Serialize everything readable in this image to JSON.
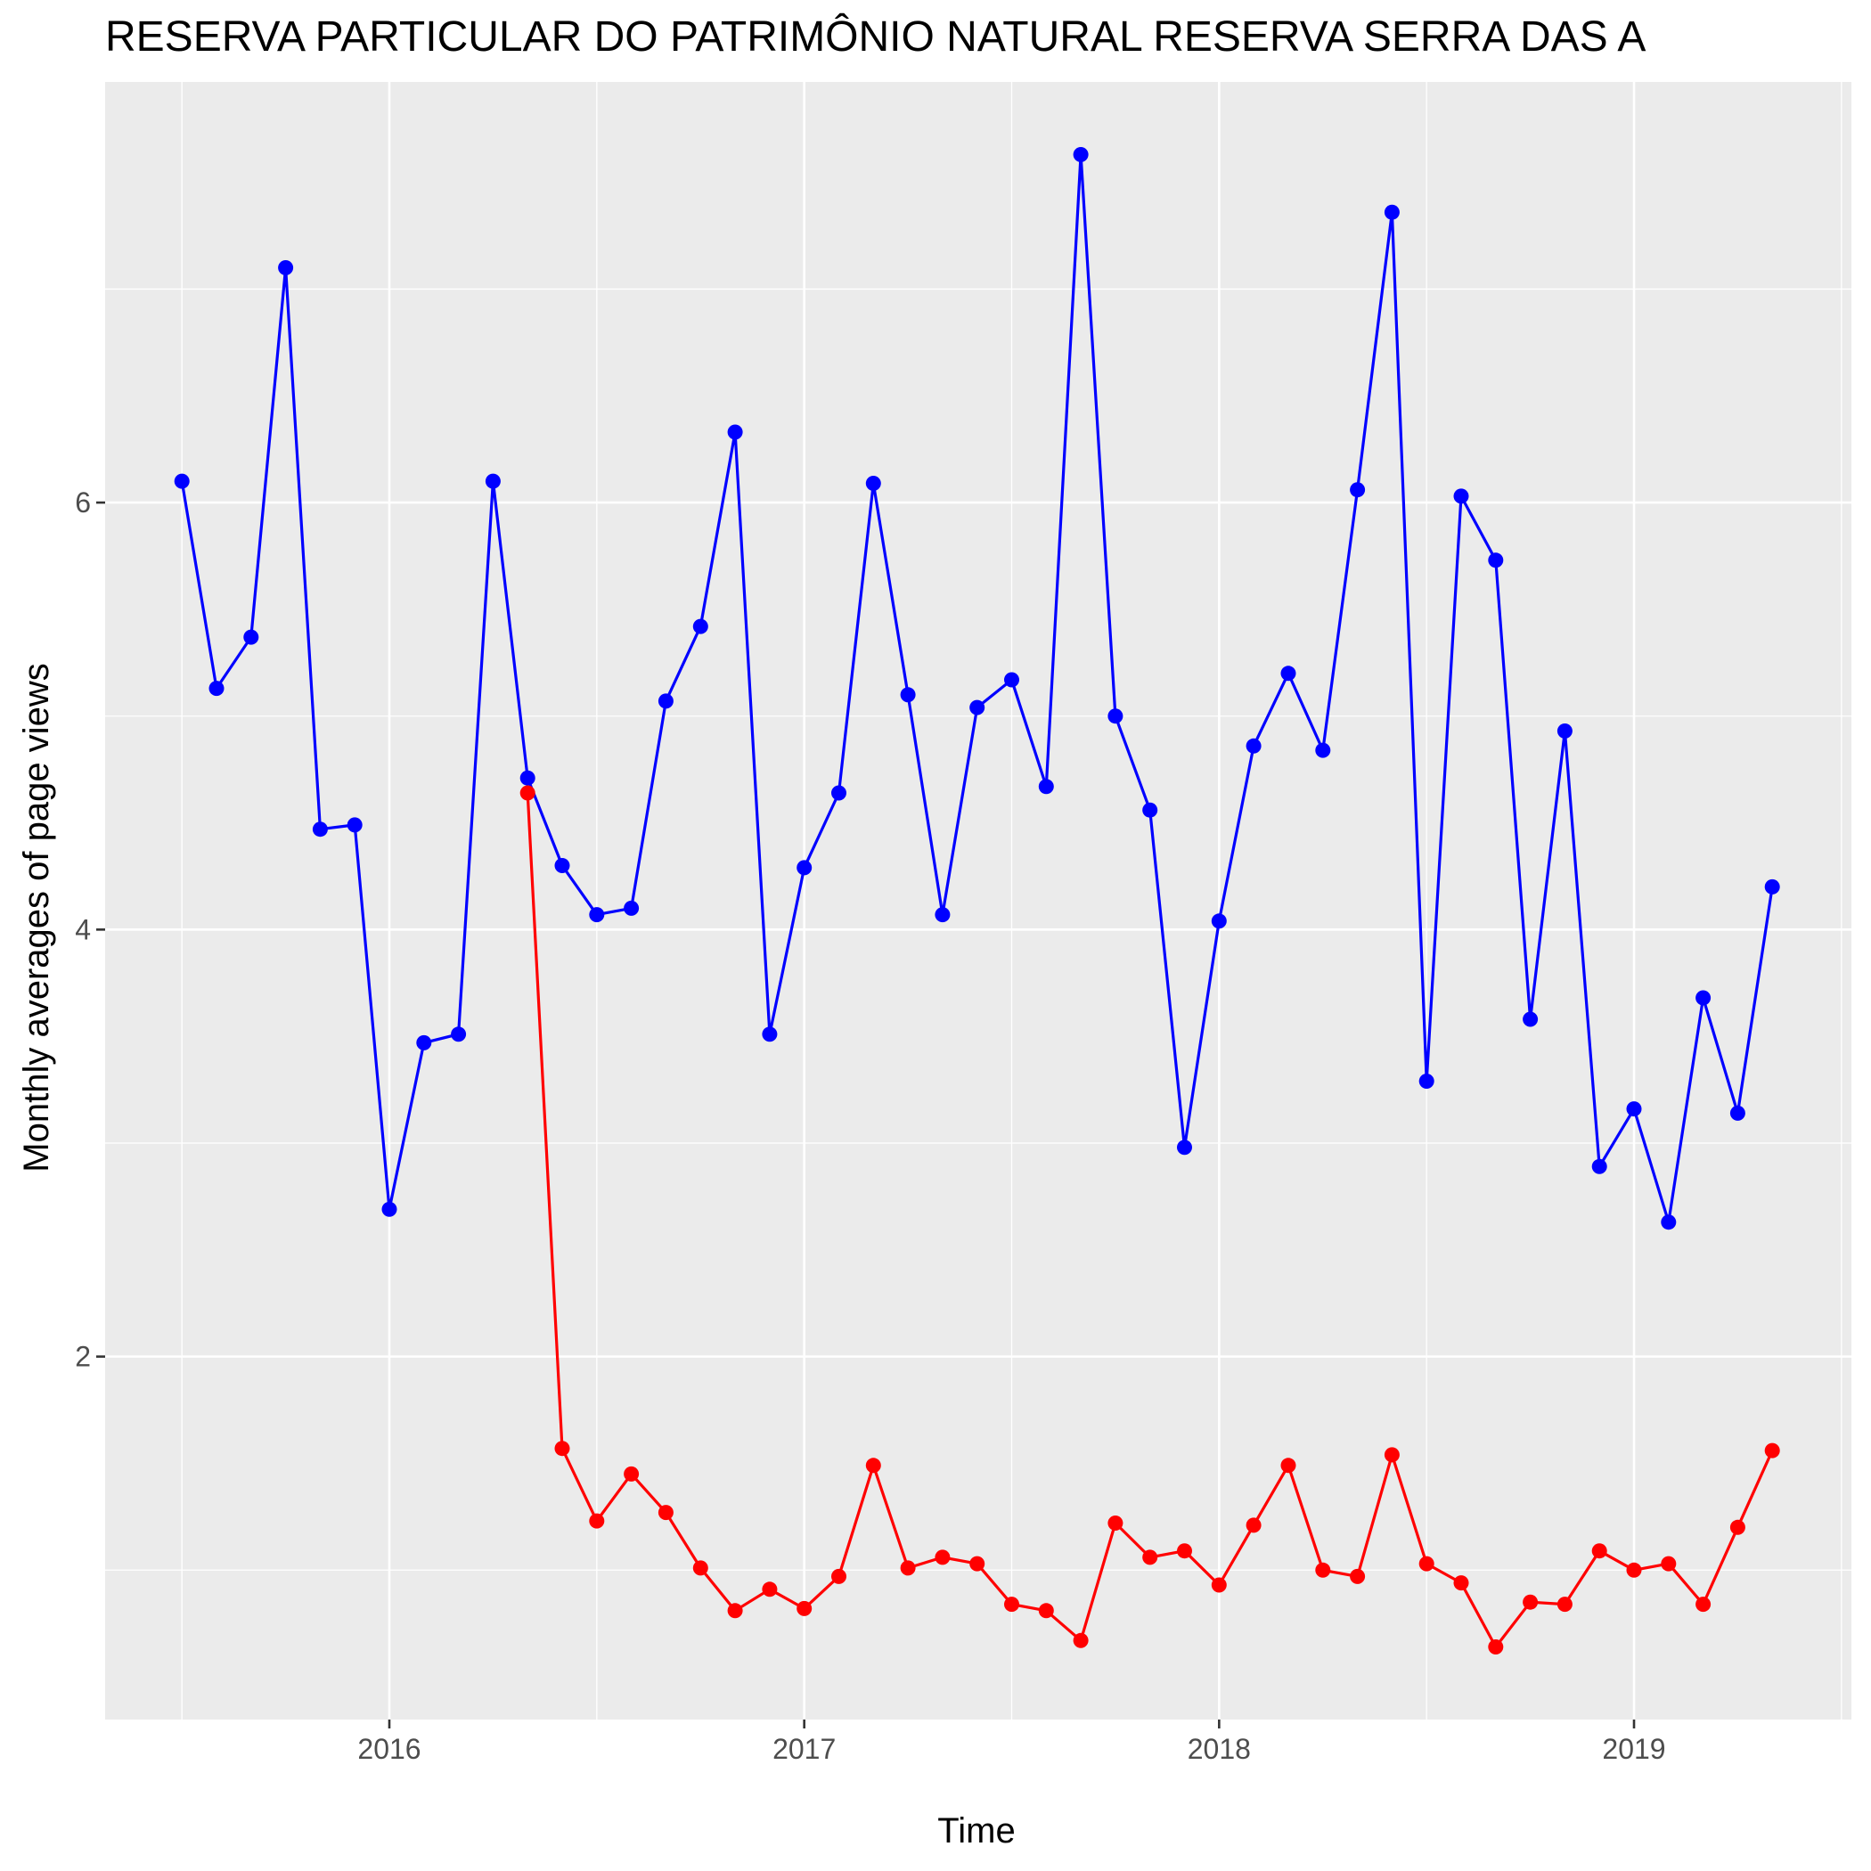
{
  "chart_data": {
    "type": "line",
    "title": "RESERVA PARTICULAR DO PATRIMÔNIO NATURAL RESERVA SERRA DAS A",
    "xlabel": "Time",
    "ylabel": "Monthly averages of page views",
    "x_ticks": [
      "2016",
      "2017",
      "2018",
      "2019"
    ],
    "y_ticks": [
      "2",
      "4",
      "6"
    ],
    "ylim": [
      0.3,
      7.97
    ],
    "grid": true,
    "x": [
      "2015-07",
      "2015-08",
      "2015-09",
      "2015-10",
      "2015-11",
      "2015-12",
      "2016-01",
      "2016-02",
      "2016-03",
      "2016-04",
      "2016-05",
      "2016-06",
      "2016-07",
      "2016-08",
      "2016-09",
      "2016-10",
      "2016-11",
      "2016-12",
      "2017-01",
      "2017-02",
      "2017-03",
      "2017-04",
      "2017-05",
      "2017-06",
      "2017-07",
      "2017-08",
      "2017-09",
      "2017-10",
      "2017-11",
      "2017-12",
      "2018-01",
      "2018-02",
      "2018-03",
      "2018-04",
      "2018-05",
      "2018-06",
      "2018-07",
      "2018-08",
      "2018-09",
      "2018-10",
      "2018-11",
      "2018-12",
      "2019-01",
      "2019-02",
      "2019-03",
      "2019-04",
      "2019-05"
    ],
    "series": [
      {
        "color": "#0000ff",
        "values": [
          6.1,
          5.13,
          5.37,
          7.1,
          4.47,
          4.49,
          2.69,
          3.47,
          3.51,
          6.1,
          4.71,
          4.3,
          4.07,
          4.1,
          5.07,
          5.42,
          6.33,
          3.51,
          4.29,
          4.64,
          6.09,
          5.1,
          4.07,
          5.04,
          5.17,
          4.67,
          7.63,
          5.0,
          4.56,
          2.98,
          4.04,
          4.86,
          5.2,
          4.84,
          6.06,
          7.36,
          3.29,
          6.03,
          5.73,
          3.58,
          4.93,
          2.89,
          3.16,
          2.63,
          3.68,
          3.14,
          4.2
        ]
      },
      {
        "color": "#ff0000",
        "values": [
          null,
          null,
          null,
          null,
          null,
          null,
          null,
          null,
          null,
          null,
          4.64,
          1.57,
          1.23,
          1.45,
          1.27,
          1.01,
          0.81,
          0.91,
          0.82,
          0.97,
          1.49,
          1.01,
          1.06,
          1.03,
          0.84,
          0.81,
          0.67,
          1.22,
          1.06,
          1.09,
          0.93,
          1.21,
          1.49,
          1.0,
          0.97,
          1.54,
          1.03,
          0.94,
          0.64,
          0.85,
          0.84,
          1.09,
          1.0,
          1.03,
          0.84,
          1.2,
          1.56
        ]
      }
    ]
  }
}
